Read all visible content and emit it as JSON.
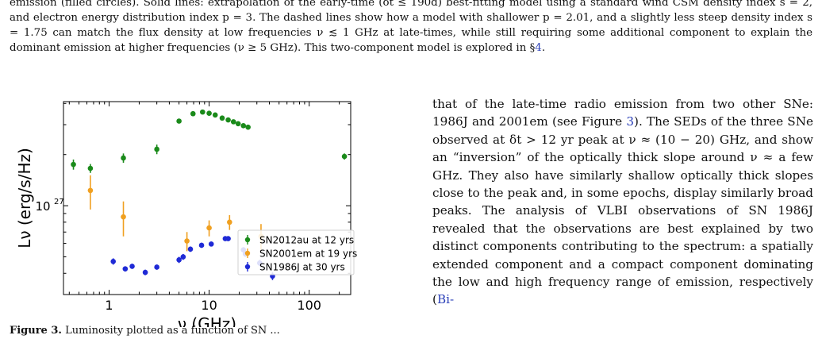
{
  "caption_top": {
    "part1": "emission (filled circles). Solid lines: extrapolation of the early-time (δt ≤ 190d) best-fitting model using a standard wind CSM density index s = 2, and electron energy distribution index p = 3. The dashed lines show how a model with shallower p = 2.01, and a slightly less steep density index s = 1.75 can match the flux density at low frequencies ν ≲ 1 GHz at late-times, while still requiring some additional component to explain the dominant emission at higher frequencies (ν ≥ 5 GHz). This two-component model is explored in §",
    "section_ref": "4",
    "part2": "."
  },
  "body_text": {
    "p1": "that of the late-time radio emission from two other SNe: 1986J and 2001em (see Figure ",
    "fig_ref": "3",
    "p2": "). The SEDs of the three SNe observed at δt > 12 yr peak at ν ≈ (10 − 20) GHz, and show an “inversion” of the optically thick slope around ν ≈ a few GHz. They also have similarly shallow optically thick slopes close to the peak and, in some epochs, display similarly broad peaks. The analysis of VLBI observations of SN 1986J revealed that the observations are best explained by two distinct components contributing to the spectrum: a spatially extended component and a compact component dominating the low and high frequency range of emission, respectively (",
    "cite": "Bi-"
  },
  "fig_caption": {
    "label": "Figure 3.",
    "text": "Luminosity plotted as a function of SN ..."
  },
  "chart_data": {
    "type": "scatter",
    "xscale": "log",
    "yscale": "log",
    "xlim": [
      0.35,
      260
    ],
    "ylim": [
      3e+26,
      4.1e+27
    ],
    "xlabel": "ν (GHz)",
    "ylabel": "Lν (erg/s/Hz)",
    "xticks": [
      {
        "value": 1,
        "label": "1"
      },
      {
        "value": 10,
        "label": "10"
      },
      {
        "value": 100,
        "label": "100"
      }
    ],
    "yticks": [
      {
        "value": 1e+27,
        "label": "10",
        "exp": "27"
      }
    ],
    "legend_position": "right",
    "series": [
      {
        "name": "SN2012au at 12 yrs",
        "color": "#1a8a1a",
        "points": [
          {
            "x": 0.44,
            "y": 1.75e+27,
            "err": 1.2e+26
          },
          {
            "x": 0.65,
            "y": 1.66e+27,
            "err": 1e+26
          },
          {
            "x": 1.39,
            "y": 1.91e+27,
            "err": 1.2e+26
          },
          {
            "x": 3.0,
            "y": 2.15e+27,
            "err": 1.4e+26
          },
          {
            "x": 5.0,
            "y": 3.15e+27,
            "err": 7e+25
          },
          {
            "x": 6.9,
            "y": 3.48e+27,
            "err": 5e+25
          },
          {
            "x": 8.6,
            "y": 3.56e+27,
            "err": 4e+25
          },
          {
            "x": 10.0,
            "y": 3.5e+27,
            "err": 4e+25
          },
          {
            "x": 11.5,
            "y": 3.42e+27,
            "err": 4e+25
          },
          {
            "x": 13.5,
            "y": 3.28e+27,
            "err": 4e+25
          },
          {
            "x": 15.5,
            "y": 3.2e+27,
            "err": 4e+25
          },
          {
            "x": 17.5,
            "y": 3.12e+27,
            "err": 4e+25
          },
          {
            "x": 19.5,
            "y": 3.04e+27,
            "err": 4e+25
          },
          {
            "x": 22.0,
            "y": 2.96e+27,
            "err": 4e+25
          },
          {
            "x": 24.5,
            "y": 2.9e+27,
            "err": 4e+25
          },
          {
            "x": 225,
            "y": 1.95e+27,
            "err": 8e+25
          }
        ]
      },
      {
        "name": "SN2001em at 19 yrs",
        "color": "#f0a020",
        "points": [
          {
            "x": 0.65,
            "y": 1.23e+27,
            "err": 2.8e+26
          },
          {
            "x": 1.39,
            "y": 8.6e+26,
            "err": 2e+26
          },
          {
            "x": 6.0,
            "y": 6.2e+26,
            "err": 8e+25
          },
          {
            "x": 10.0,
            "y": 7.4e+26,
            "err": 8e+25
          },
          {
            "x": 16.0,
            "y": 8e+26,
            "err": 8e+25
          },
          {
            "x": 33.0,
            "y": 6.6e+26,
            "err": 1.2e+26
          }
        ]
      },
      {
        "name": "SN1986J at 30 yrs",
        "color": "#1f2ad6",
        "points": [
          {
            "x": 1.1,
            "y": 4.7e+26,
            "err": 2e+25
          },
          {
            "x": 1.45,
            "y": 4.25e+26,
            "err": 1.5e+25
          },
          {
            "x": 1.7,
            "y": 4.4e+26,
            "err": 1.5e+25
          },
          {
            "x": 2.3,
            "y": 4.05e+26,
            "err": 1.5e+25
          },
          {
            "x": 3.0,
            "y": 4.35e+26,
            "err": 1.5e+25
          },
          {
            "x": 5.0,
            "y": 4.8e+26,
            "err": 2e+25
          },
          {
            "x": 5.5,
            "y": 5e+26,
            "err": 2e+25
          },
          {
            "x": 6.5,
            "y": 5.55e+26,
            "err": 2e+25
          },
          {
            "x": 8.4,
            "y": 5.85e+26,
            "err": 2e+25
          },
          {
            "x": 10.5,
            "y": 5.95e+26,
            "err": 2e+25
          },
          {
            "x": 14.5,
            "y": 6.4e+26,
            "err": 2e+25
          },
          {
            "x": 15.5,
            "y": 6.4e+26,
            "err": 2e+25
          },
          {
            "x": 22.0,
            "y": 5.5e+26,
            "err": 2e+25
          },
          {
            "x": 23.0,
            "y": 5.2e+26,
            "err": 2e+25
          },
          {
            "x": 32.0,
            "y": 4.6e+26,
            "err": 2e+25
          },
          {
            "x": 43.0,
            "y": 3.85e+26,
            "err": 2e+25
          }
        ]
      }
    ]
  }
}
